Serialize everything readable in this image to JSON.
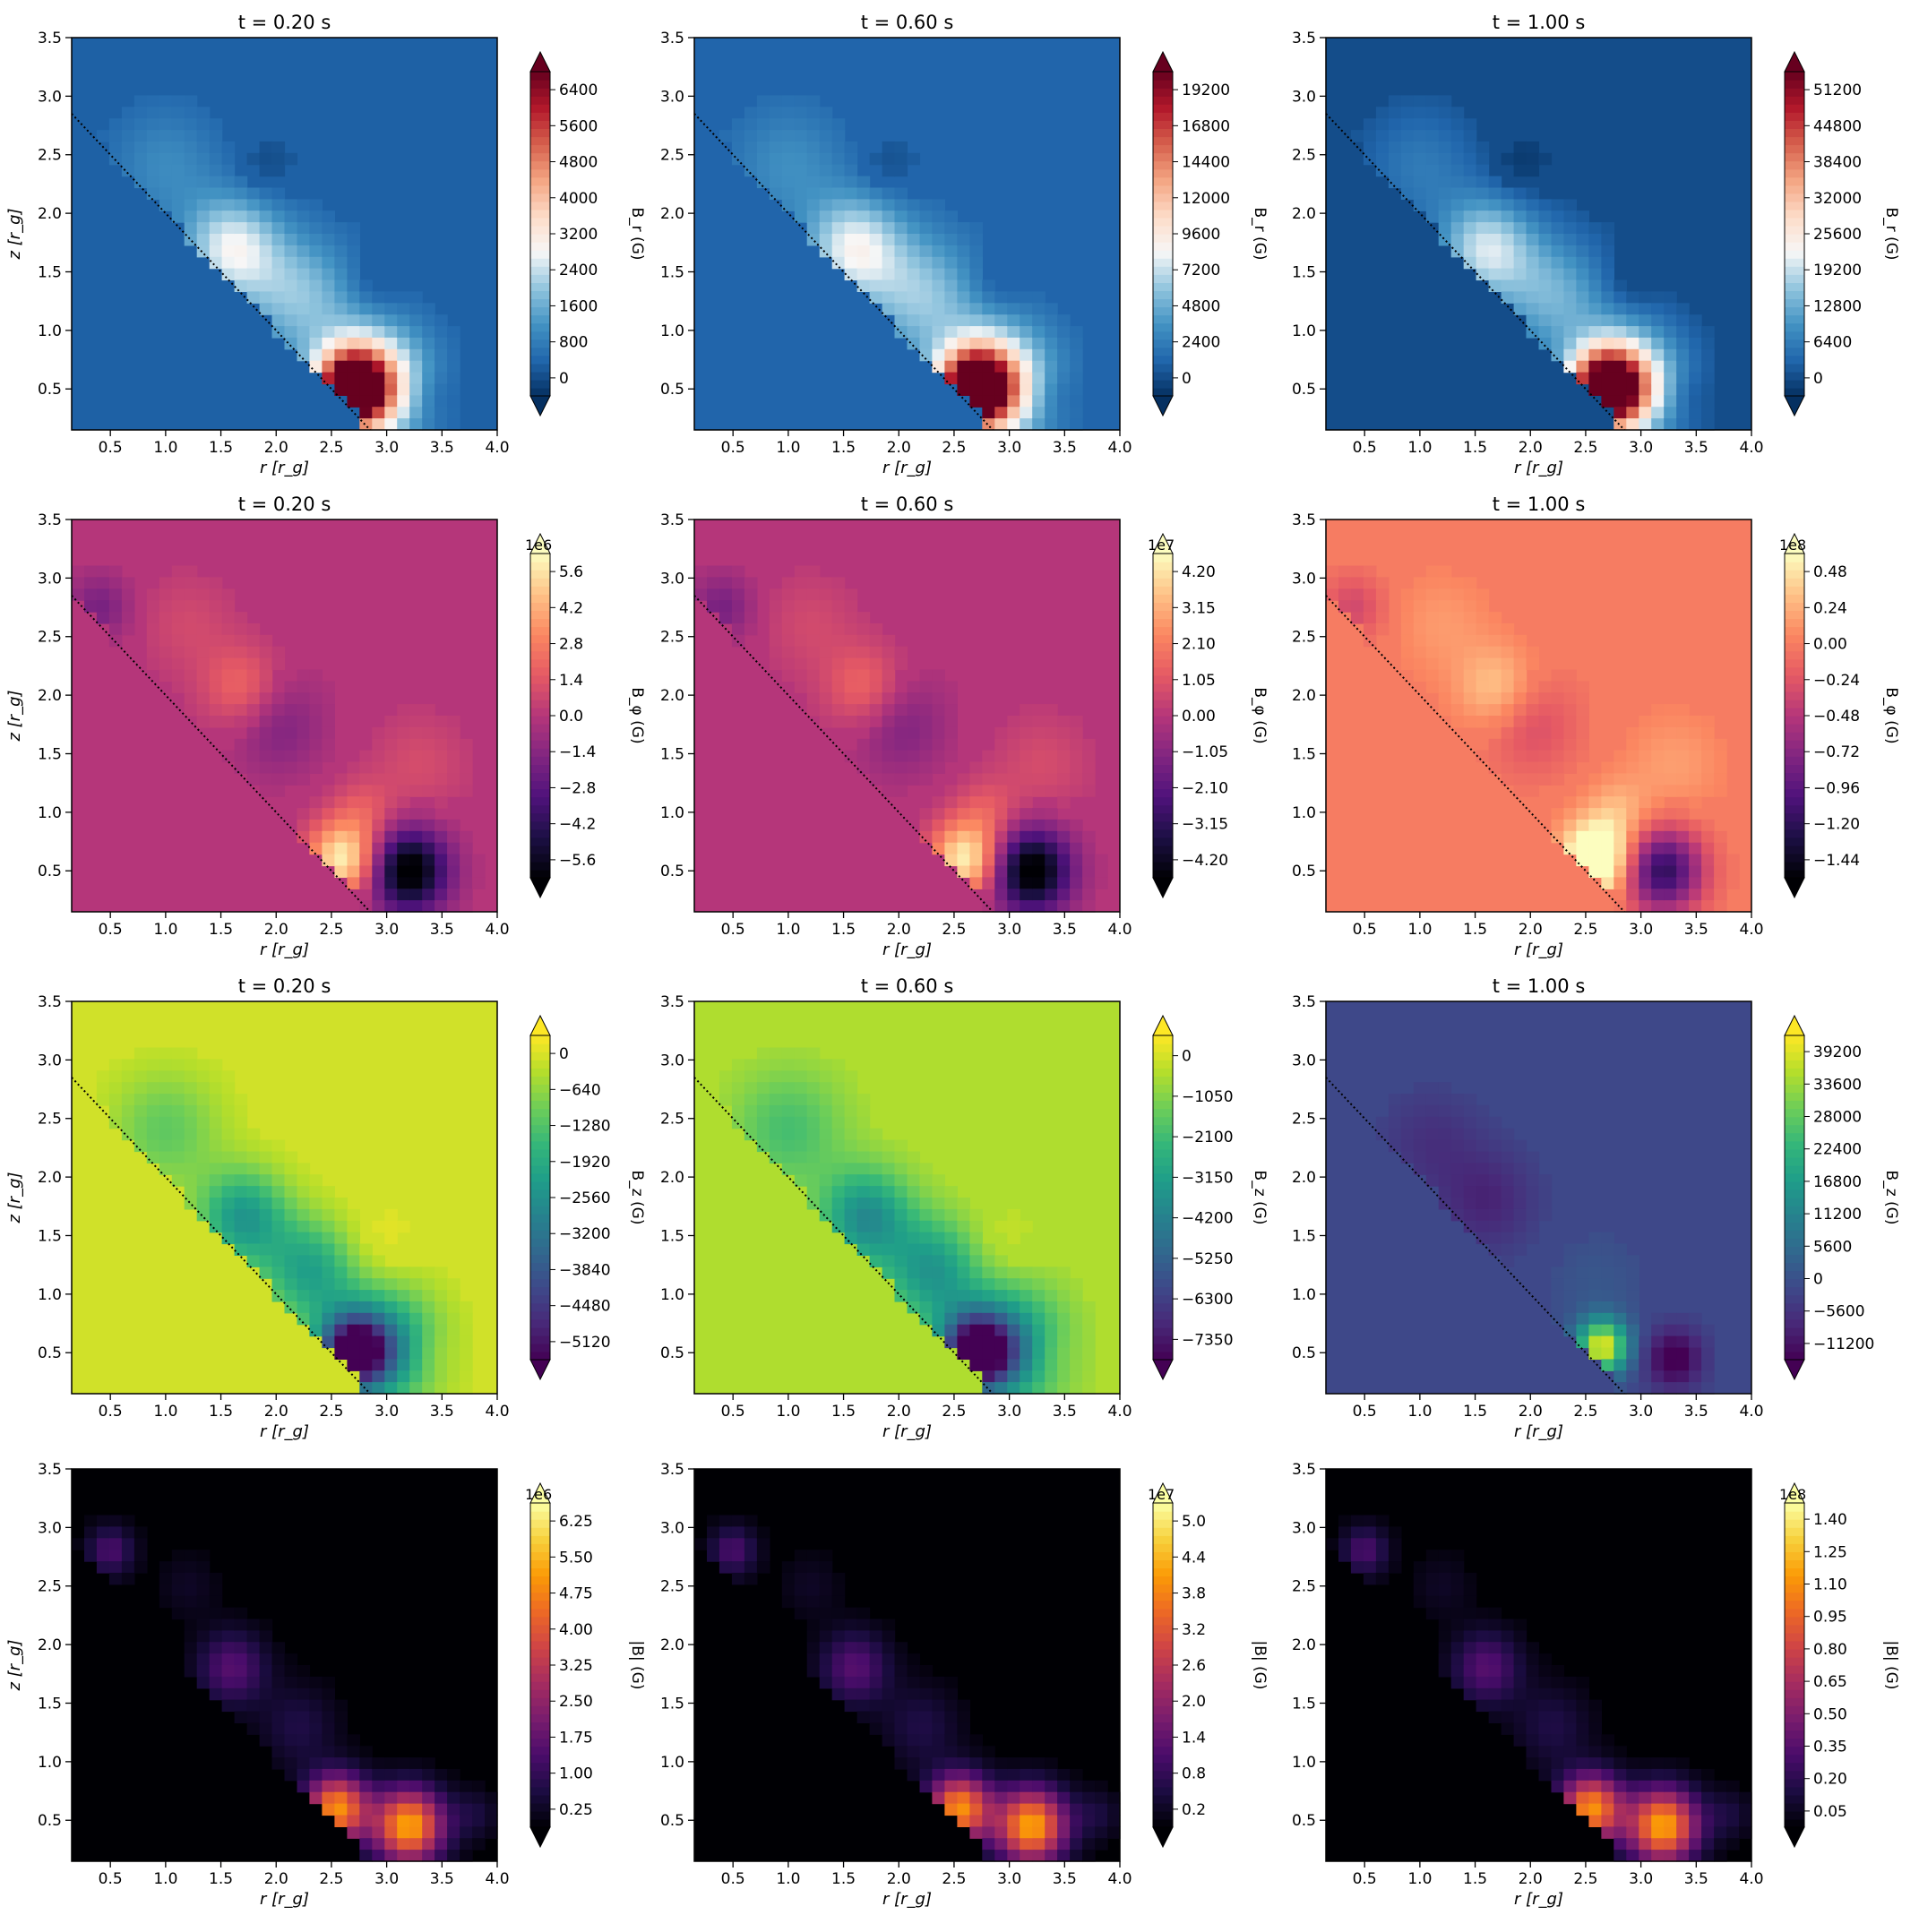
{
  "figure": {
    "description": "4x3 grid of heatmap contour plots of magnetic field components",
    "x_label": "r [r_g]",
    "y_label": "z [r_g]",
    "x_ticks": [
      "0.5",
      "1.0",
      "1.5",
      "2.0",
      "2.5",
      "3.0",
      "3.5",
      "4.0"
    ],
    "y_ticks": [
      "0.5",
      "1.0",
      "1.5",
      "2.0",
      "2.5",
      "3.0",
      "3.5"
    ]
  },
  "chart_data": [
    {
      "type": "heatmap",
      "row": 0,
      "col": 0,
      "title": "t = 0.20 s",
      "cbar_label": "B_r (G)",
      "cmap": "RdBu_r",
      "cbar_ticks": [
        "0",
        "800",
        "1600",
        "2400",
        "3200",
        "4000",
        "4800",
        "5600",
        "6400"
      ],
      "cbar_extend": "both",
      "bg_level": 0.1
    },
    {
      "type": "heatmap",
      "row": 0,
      "col": 1,
      "title": "t = 0.60 s",
      "cbar_label": "B_r (G)",
      "cmap": "RdBu_r",
      "cbar_ticks": [
        "0",
        "2400",
        "4800",
        "7200",
        "9600",
        "12000",
        "14400",
        "16800",
        "19200"
      ],
      "cbar_extend": "both",
      "bg_level": 0.11
    },
    {
      "type": "heatmap",
      "row": 0,
      "col": 2,
      "title": "t = 1.00 s",
      "cbar_label": "B_r (G)",
      "cmap": "RdBu_r",
      "cbar_ticks": [
        "0",
        "6400",
        "12800",
        "19200",
        "25600",
        "32000",
        "38400",
        "44800",
        "51200"
      ],
      "cbar_extend": "both",
      "bg_level": 0.06
    },
    {
      "type": "heatmap",
      "row": 1,
      "col": 0,
      "title": "t = 0.20 s",
      "cbar_label": "B_φ (G)",
      "cmap": "magma",
      "offset": "1e6",
      "cbar_ticks": [
        "−5.6",
        "−4.2",
        "−2.8",
        "−1.4",
        "0.0",
        "1.4",
        "2.8",
        "4.2",
        "5.6"
      ],
      "cbar_extend": "both",
      "bg_level": 0.5
    },
    {
      "type": "heatmap",
      "row": 1,
      "col": 1,
      "title": "t = 0.60 s",
      "cbar_label": "B_φ (G)",
      "cmap": "magma",
      "offset": "1e7",
      "cbar_ticks": [
        "−4.20",
        "−3.15",
        "−2.10",
        "−1.05",
        "0.00",
        "1.05",
        "2.10",
        "3.15",
        "4.20"
      ],
      "cbar_extend": "both",
      "bg_level": 0.5
    },
    {
      "type": "heatmap",
      "row": 1,
      "col": 2,
      "title": "t = 1.00 s",
      "cbar_label": "B_φ (G)",
      "cmap": "magma",
      "offset": "1e8",
      "cbar_ticks": [
        "−1.44",
        "−1.20",
        "−0.96",
        "−0.72",
        "−0.48",
        "−0.24",
        "0.00",
        "0.24",
        "0.48"
      ],
      "cbar_extend": "both",
      "bg_level": 0.72
    },
    {
      "type": "heatmap",
      "row": 2,
      "col": 0,
      "title": "t = 0.20 s",
      "cbar_label": "B_z (G)",
      "cmap": "viridis",
      "cbar_ticks": [
        "−5120",
        "−4480",
        "−3840",
        "−3200",
        "−2560",
        "−1920",
        "−1280",
        "−640",
        "0"
      ],
      "cbar_extend": "both",
      "bg_level": 0.93
    },
    {
      "type": "heatmap",
      "row": 2,
      "col": 1,
      "title": "t = 0.60 s",
      "cbar_label": "B_z (G)",
      "cmap": "viridis",
      "cbar_ticks": [
        "−7350",
        "−6300",
        "−5250",
        "−4200",
        "−3150",
        "−2100",
        "−1050",
        "0"
      ],
      "cbar_extend": "both",
      "bg_level": 0.88
    },
    {
      "type": "heatmap",
      "row": 2,
      "col": 2,
      "title": "t = 1.00 s",
      "cbar_label": "B_z (G)",
      "cmap": "viridis",
      "cbar_ticks": [
        "−11200",
        "−5600",
        "0",
        "5600",
        "11200",
        "16800",
        "22400",
        "28000",
        "33600",
        "39200"
      ],
      "cbar_extend": "both",
      "bg_level": 0.22
    },
    {
      "type": "heatmap",
      "row": 3,
      "col": 0,
      "title": "",
      "cbar_label": "|B| (G)",
      "cmap": "inferno",
      "offset": "1e6",
      "cbar_ticks": [
        "0.25",
        "1.00",
        "1.75",
        "2.50",
        "3.25",
        "4.00",
        "4.75",
        "5.50",
        "6.25"
      ],
      "cbar_extend": "both",
      "bg_level": 0.0
    },
    {
      "type": "heatmap",
      "row": 3,
      "col": 1,
      "title": "",
      "cbar_label": "|B| (G)",
      "cmap": "inferno",
      "offset": "1e7",
      "cbar_ticks": [
        "0.2",
        "0.8",
        "1.4",
        "2.0",
        "2.6",
        "3.2",
        "3.8",
        "4.4",
        "5.0"
      ],
      "cbar_extend": "both",
      "bg_level": 0.0
    },
    {
      "type": "heatmap",
      "row": 3,
      "col": 2,
      "title": "",
      "cbar_label": "|B| (G)",
      "cmap": "inferno",
      "offset": "1e8",
      "cbar_ticks": [
        "0.05",
        "0.20",
        "0.35",
        "0.50",
        "0.65",
        "0.80",
        "0.95",
        "1.10",
        "1.25",
        "1.40"
      ],
      "cbar_extend": "both",
      "bg_level": 0.0
    }
  ]
}
